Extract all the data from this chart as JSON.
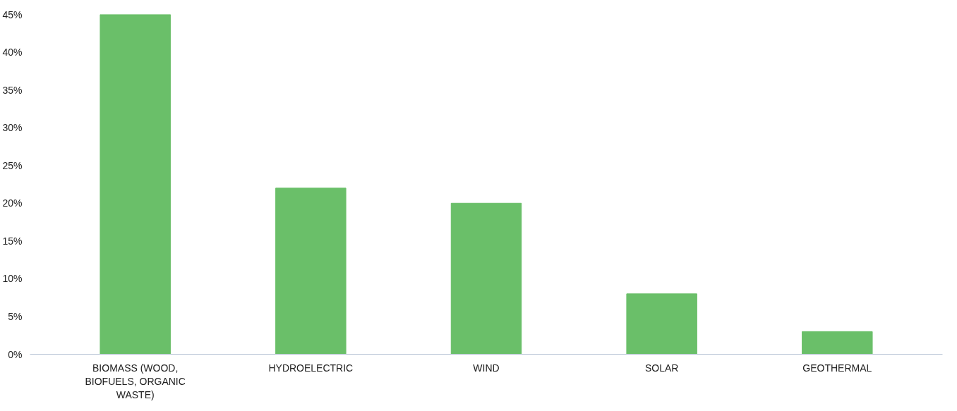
{
  "chart_data": {
    "type": "bar",
    "categories": [
      "BIOMASS (WOOD, BIOFUELS, ORGANIC WASTE)",
      "HYDROELECTRIC",
      "WIND",
      "SOLAR",
      "GEOTHERMAL"
    ],
    "values": [
      45,
      22,
      20,
      8,
      3
    ],
    "color": "#6abf69",
    "ylim": [
      0,
      45
    ],
    "yticks": [
      {
        "value": 0,
        "label": "0%"
      },
      {
        "value": 5,
        "label": "5%"
      },
      {
        "value": 10,
        "label": "10%"
      },
      {
        "value": 15,
        "label": "15%"
      },
      {
        "value": 20,
        "label": "20%"
      },
      {
        "value": 25,
        "label": "25%"
      },
      {
        "value": 30,
        "label": "30%"
      },
      {
        "value": 35,
        "label": "35%"
      },
      {
        "value": 40,
        "label": "40%"
      },
      {
        "value": 45,
        "label": "45%"
      }
    ]
  }
}
